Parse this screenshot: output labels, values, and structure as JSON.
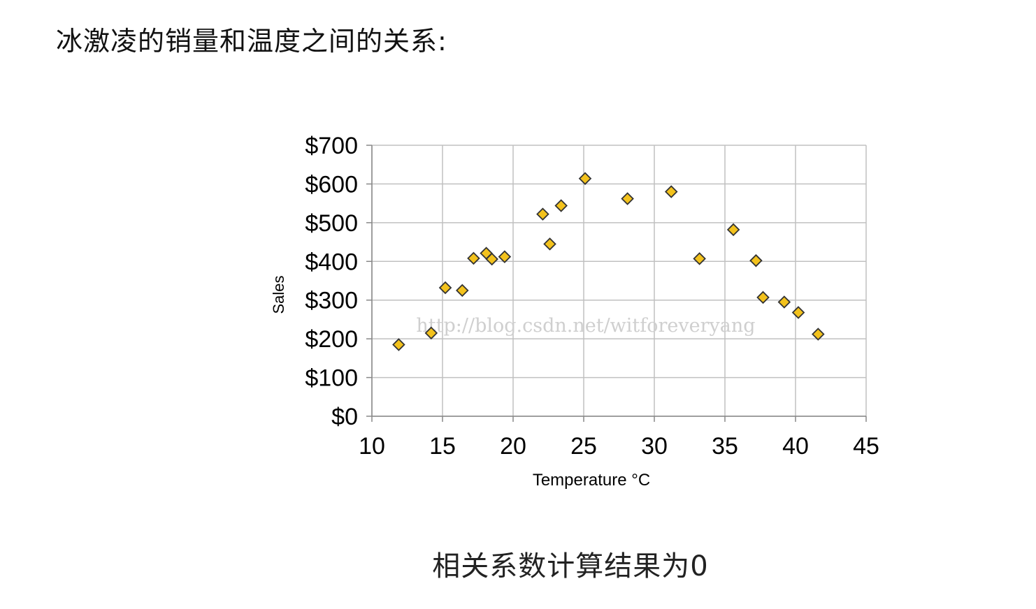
{
  "heading": "冰激凌的销量和温度之间的关系:",
  "caption": "相关系数计算结果为0",
  "watermark": "http://blog.csdn.net/witforeveryang",
  "colors": {
    "marker_fill": "#f3c21c",
    "marker_stroke": "#333333",
    "grid": "#c0c0c0",
    "axis": "#888888"
  },
  "chart_data": {
    "type": "scatter",
    "xlabel": "Temperature °C",
    "ylabel": "Sales",
    "xlim": [
      10,
      45
    ],
    "ylim": [
      0,
      700
    ],
    "x_ticks": [
      10,
      15,
      20,
      25,
      30,
      35,
      40,
      45
    ],
    "y_ticks": [
      0,
      100,
      200,
      300,
      400,
      500,
      600,
      700
    ],
    "y_tick_labels": [
      "$0",
      "$100",
      "$200",
      "$300",
      "$400",
      "$500",
      "$600",
      "$700"
    ],
    "grid": true,
    "marker": "diamond",
    "points": [
      {
        "x": 11.9,
        "y": 185
      },
      {
        "x": 14.2,
        "y": 215
      },
      {
        "x": 15.2,
        "y": 332
      },
      {
        "x": 16.4,
        "y": 325
      },
      {
        "x": 17.2,
        "y": 408
      },
      {
        "x": 18.1,
        "y": 421
      },
      {
        "x": 18.5,
        "y": 406
      },
      {
        "x": 19.4,
        "y": 412
      },
      {
        "x": 22.1,
        "y": 522
      },
      {
        "x": 22.6,
        "y": 445
      },
      {
        "x": 23.4,
        "y": 544
      },
      {
        "x": 25.1,
        "y": 614
      },
      {
        "x": 28.1,
        "y": 562
      },
      {
        "x": 31.2,
        "y": 580
      },
      {
        "x": 33.2,
        "y": 407
      },
      {
        "x": 35.6,
        "y": 482
      },
      {
        "x": 37.2,
        "y": 402
      },
      {
        "x": 37.7,
        "y": 307
      },
      {
        "x": 39.2,
        "y": 295
      },
      {
        "x": 40.2,
        "y": 268
      },
      {
        "x": 41.6,
        "y": 212
      }
    ]
  }
}
